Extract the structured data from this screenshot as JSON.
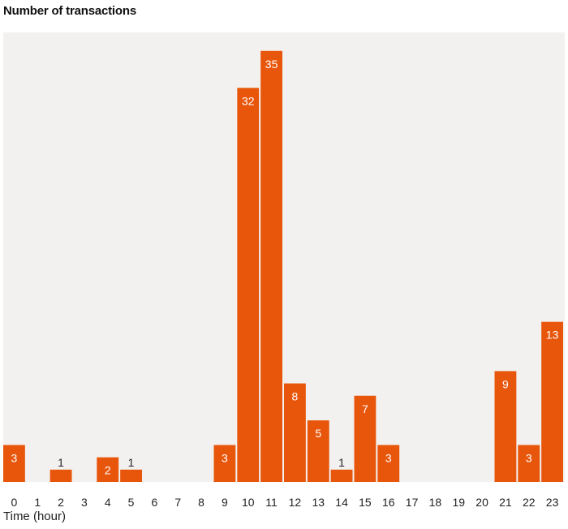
{
  "chart_data": {
    "type": "bar",
    "title": "Number of transactions",
    "xlabel": "Time (hour)",
    "ylabel": "",
    "categories": [
      "0",
      "1",
      "2",
      "3",
      "4",
      "5",
      "6",
      "7",
      "8",
      "9",
      "10",
      "11",
      "12",
      "13",
      "14",
      "15",
      "16",
      "17",
      "18",
      "19",
      "20",
      "21",
      "22",
      "23"
    ],
    "values": [
      3,
      0,
      1,
      0,
      2,
      1,
      0,
      0,
      0,
      3,
      32,
      35,
      8,
      5,
      1,
      7,
      3,
      0,
      0,
      0,
      0,
      9,
      3,
      13
    ],
    "ylim": [
      0,
      36.5
    ],
    "grid": false,
    "legend": "none",
    "colors": {
      "bar": "#e8560c",
      "plot_background": "#f3f1ef",
      "label_inside": "#ffffff",
      "label_outside": "#222222",
      "tick_label": "#222222"
    }
  }
}
